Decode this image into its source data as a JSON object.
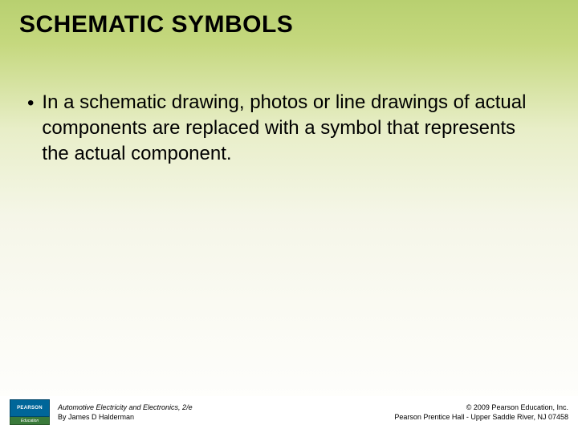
{
  "colors": {
    "gradient_top": "#b8d070",
    "gradient_bottom": "#ffffff",
    "text": "#000000",
    "logo_top_bg": "#006699",
    "logo_bottom_bg": "#3a7a3a"
  },
  "typography": {
    "title_fontsize": 30,
    "body_fontsize": 24,
    "footer_fontsize": 9
  },
  "title": "SCHEMATIC SYMBOLS",
  "bullets": [
    "In a schematic drawing, photos or line drawings of actual components are replaced with a symbol that represents the actual component."
  ],
  "logo": {
    "top": "PEARSON",
    "bottom": "Education"
  },
  "footer_left": {
    "book_title": "Automotive Electricity and Electronics, 2/e",
    "author_line": "By James D Halderman"
  },
  "footer_right": {
    "copyright": "© 2009 Pearson Education, Inc.",
    "address": "Pearson Prentice Hall - Upper Saddle River, NJ 07458"
  }
}
